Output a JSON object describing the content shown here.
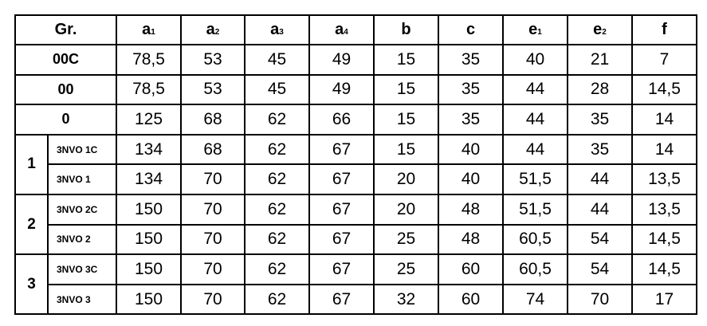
{
  "header": {
    "group": "Gr.",
    "columns": [
      {
        "base": "a",
        "sub": "1"
      },
      {
        "base": "a",
        "sub": "2"
      },
      {
        "base": "a",
        "sub": "3"
      },
      {
        "base": "a",
        "sub": "4"
      },
      {
        "base": "b",
        "sub": ""
      },
      {
        "base": "c",
        "sub": ""
      },
      {
        "base": "e",
        "sub": "1"
      },
      {
        "base": "e",
        "sub": "2"
      },
      {
        "base": "f",
        "sub": ""
      }
    ]
  },
  "rows": [
    {
      "group": "00C",
      "sub": "",
      "values": [
        "78,5",
        "53",
        "45",
        "49",
        "15",
        "35",
        "40",
        "21",
        "7"
      ]
    },
    {
      "group": "00",
      "sub": "",
      "values": [
        "78,5",
        "53",
        "45",
        "49",
        "15",
        "35",
        "44",
        "28",
        "14,5"
      ]
    },
    {
      "group": "0",
      "sub": "",
      "values": [
        "125",
        "68",
        "62",
        "66",
        "15",
        "35",
        "44",
        "35",
        "14"
      ]
    },
    {
      "group": "1",
      "sub": "3NVO 1C",
      "values": [
        "134",
        "68",
        "62",
        "67",
        "15",
        "40",
        "44",
        "35",
        "14"
      ]
    },
    {
      "group": "1",
      "sub": "3NVO 1",
      "values": [
        "134",
        "70",
        "62",
        "67",
        "20",
        "40",
        "51,5",
        "44",
        "13,5"
      ]
    },
    {
      "group": "2",
      "sub": "3NVO 2C",
      "values": [
        "150",
        "70",
        "62",
        "67",
        "20",
        "48",
        "51,5",
        "44",
        "13,5"
      ]
    },
    {
      "group": "2",
      "sub": "3NVO 2",
      "values": [
        "150",
        "70",
        "62",
        "67",
        "25",
        "48",
        "60,5",
        "54",
        "14,5"
      ]
    },
    {
      "group": "3",
      "sub": "3NVO 3C",
      "values": [
        "150",
        "70",
        "62",
        "67",
        "25",
        "60",
        "60,5",
        "54",
        "14,5"
      ]
    },
    {
      "group": "3",
      "sub": "3NVO 3",
      "values": [
        "150",
        "70",
        "62",
        "67",
        "32",
        "60",
        "74",
        "70",
        "17"
      ]
    }
  ]
}
